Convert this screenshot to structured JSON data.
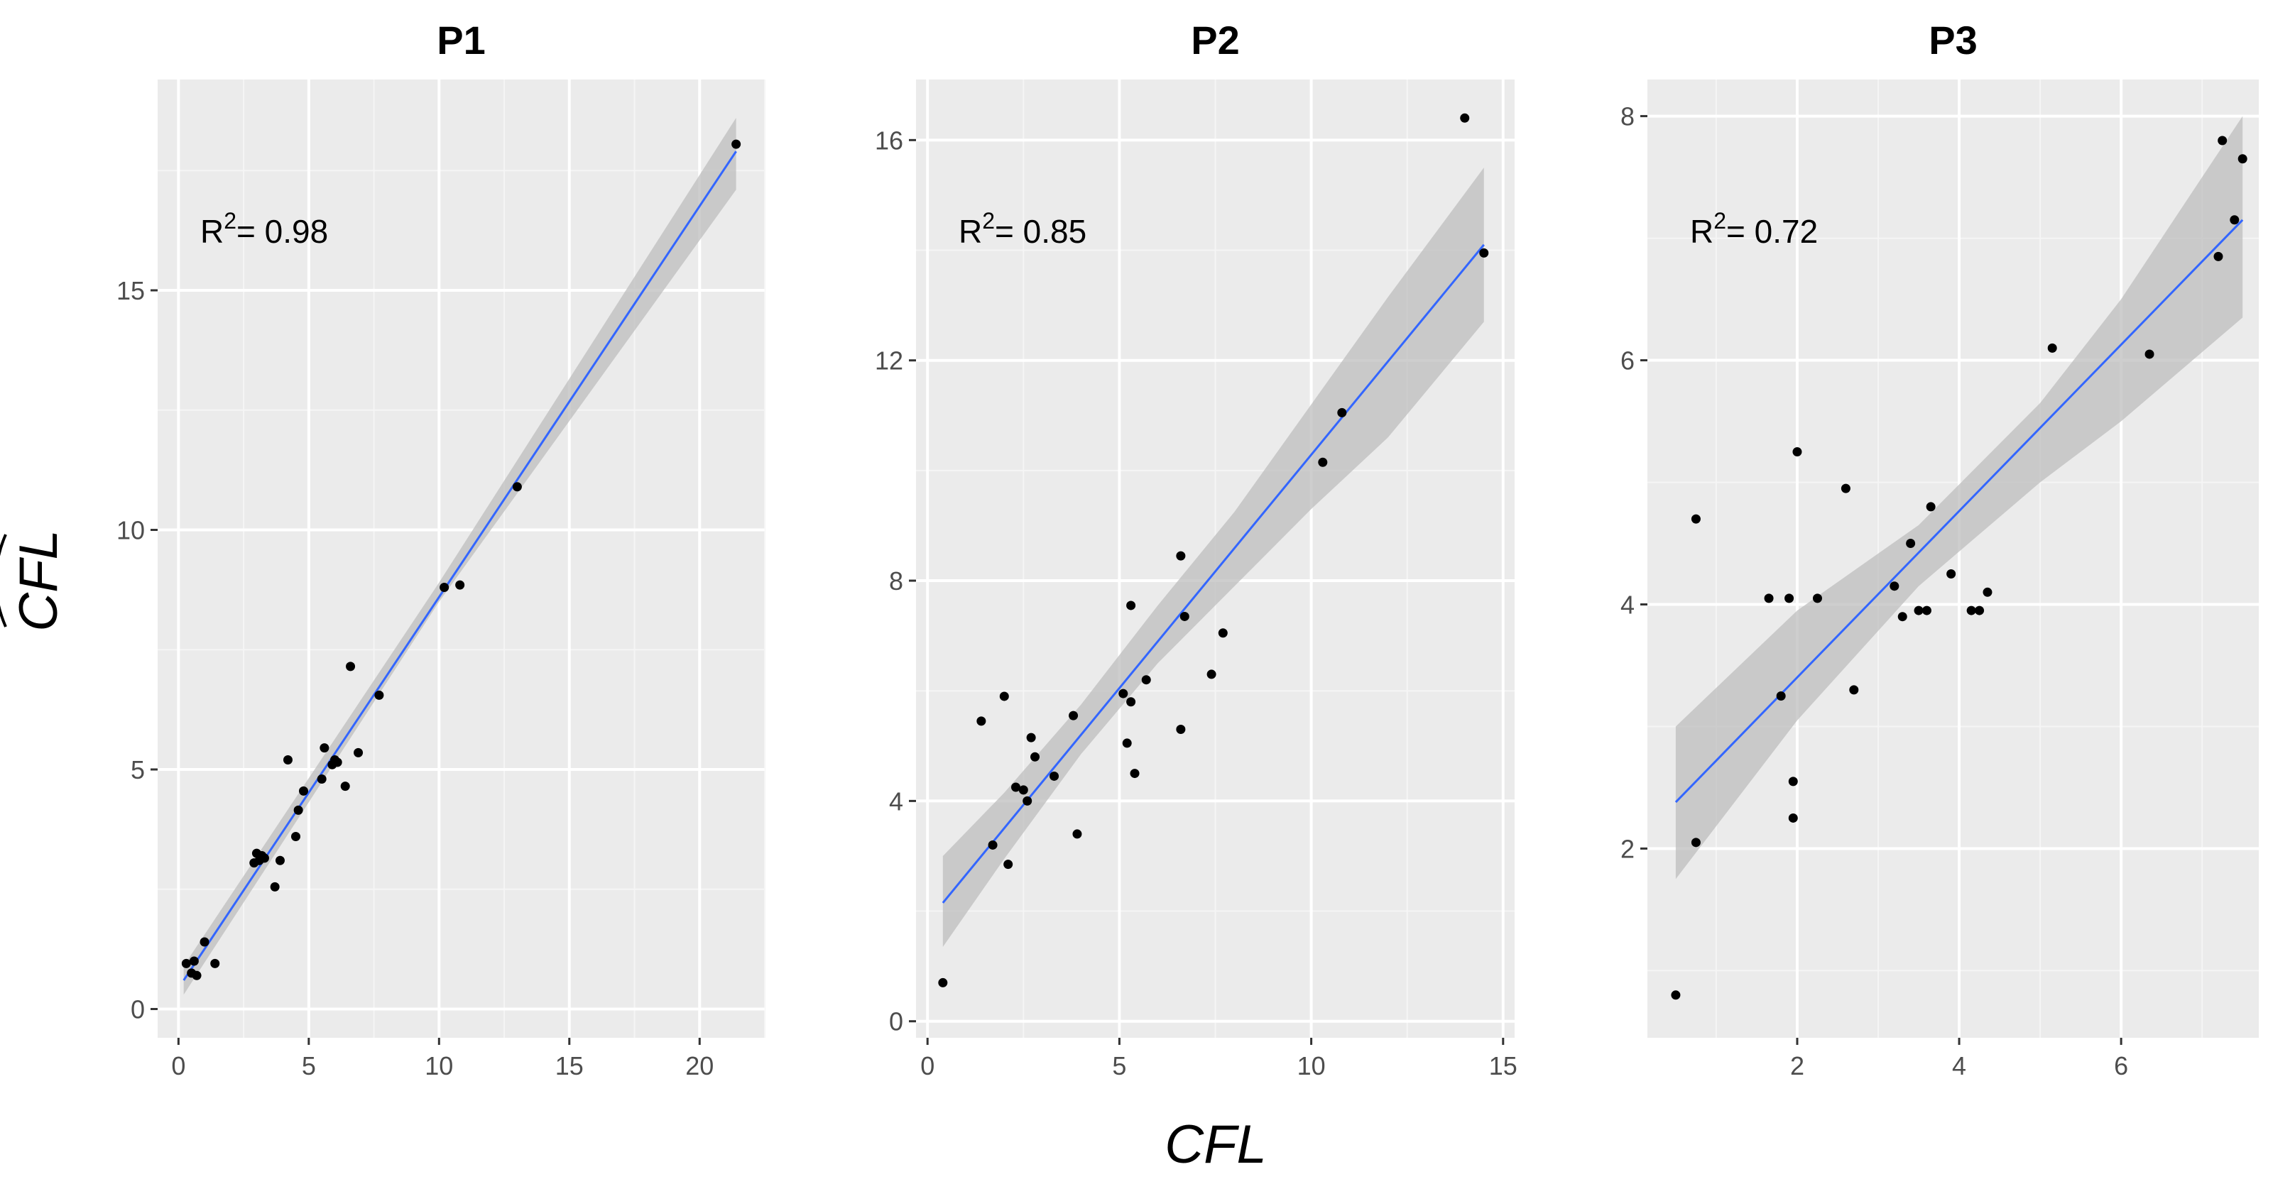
{
  "figure": {
    "xlabel": "CFL",
    "ylabel": "CFL",
    "ylabel_decoration": "wide-hat"
  },
  "colors": {
    "panel_background": "#ebebeb",
    "grid_major": "#ffffff",
    "grid_minor": "#f5f5f5",
    "fit_line": "#3366ff",
    "ribbon": "#bdbdbd",
    "points": "#000000"
  },
  "chart_data": [
    {
      "type": "scatter",
      "title": "P1",
      "annotation": {
        "prefix": "R",
        "superscript": "2",
        "text": "= 0.98",
        "r_squared": 0.98
      },
      "xlim": [
        -0.8,
        22.5
      ],
      "ylim": [
        -0.6,
        19.4
      ],
      "xticks": [
        0,
        5,
        10,
        15,
        20
      ],
      "yticks": [
        0,
        5,
        10,
        15
      ],
      "xtick_labels": [
        "0",
        "5",
        "10",
        "15",
        "20"
      ],
      "ytick_labels": [
        "0",
        "5",
        "10",
        "15"
      ],
      "fit": {
        "x": [
          0.2,
          21.4
        ],
        "y": [
          0.6,
          17.9
        ]
      },
      "ribbon": [
        [
          0.2,
          0.3,
          0.9
        ],
        [
          10.0,
          8.5,
          8.9
        ],
        [
          21.4,
          17.1,
          18.6
        ]
      ],
      "points": [
        [
          0.3,
          0.95
        ],
        [
          0.5,
          0.75
        ],
        [
          0.6,
          1.0
        ],
        [
          0.7,
          0.7
        ],
        [
          1.0,
          1.4
        ],
        [
          1.4,
          0.95
        ],
        [
          2.9,
          3.05
        ],
        [
          3.0,
          3.25
        ],
        [
          3.1,
          3.1
        ],
        [
          3.2,
          3.2
        ],
        [
          3.3,
          3.15
        ],
        [
          3.7,
          2.55
        ],
        [
          3.9,
          3.1
        ],
        [
          4.2,
          5.2
        ],
        [
          4.5,
          3.6
        ],
        [
          4.6,
          4.15
        ],
        [
          4.8,
          4.55
        ],
        [
          5.5,
          4.8
        ],
        [
          5.6,
          5.45
        ],
        [
          5.9,
          5.1
        ],
        [
          6.0,
          5.2
        ],
        [
          6.1,
          5.15
        ],
        [
          6.4,
          4.65
        ],
        [
          6.6,
          7.15
        ],
        [
          6.9,
          5.35
        ],
        [
          7.7,
          6.55
        ],
        [
          10.2,
          8.8
        ],
        [
          10.8,
          8.85
        ],
        [
          13.0,
          10.9
        ],
        [
          21.4,
          18.05
        ]
      ]
    },
    {
      "type": "scatter",
      "title": "P2",
      "annotation": {
        "prefix": "R",
        "superscript": "2",
        "text": "= 0.85",
        "r_squared": 0.85
      },
      "xlim": [
        -0.3,
        15.3
      ],
      "ylim": [
        -0.3,
        17.1
      ],
      "xticks": [
        0,
        5,
        10,
        15
      ],
      "yticks": [
        0,
        4,
        8,
        12,
        16
      ],
      "xtick_labels": [
        "0",
        "5",
        "10",
        "15"
      ],
      "ytick_labels": [
        "0",
        "4",
        "8",
        "12",
        "16"
      ],
      "fit": {
        "x": [
          0.4,
          14.5
        ],
        "y": [
          2.15,
          14.1
        ]
      },
      "ribbon": [
        [
          0.4,
          1.35,
          3.0
        ],
        [
          2.0,
          2.95,
          4.15
        ],
        [
          4.0,
          4.85,
          5.75
        ],
        [
          6.0,
          6.5,
          7.55
        ],
        [
          8.0,
          7.9,
          9.25
        ],
        [
          10.0,
          9.3,
          11.2
        ],
        [
          12.0,
          10.6,
          13.15
        ],
        [
          14.5,
          12.7,
          15.5
        ]
      ],
      "points": [
        [
          0.4,
          0.7
        ],
        [
          1.4,
          5.45
        ],
        [
          1.7,
          3.2
        ],
        [
          2.0,
          5.9
        ],
        [
          2.1,
          2.85
        ],
        [
          2.3,
          4.25
        ],
        [
          2.5,
          4.2
        ],
        [
          2.6,
          4.0
        ],
        [
          2.7,
          5.15
        ],
        [
          2.8,
          4.8
        ],
        [
          3.3,
          4.45
        ],
        [
          3.8,
          5.55
        ],
        [
          3.9,
          3.4
        ],
        [
          5.1,
          5.95
        ],
        [
          5.2,
          5.05
        ],
        [
          5.3,
          7.55
        ],
        [
          5.3,
          5.8
        ],
        [
          5.4,
          4.5
        ],
        [
          5.7,
          6.2
        ],
        [
          6.6,
          5.3
        ],
        [
          6.6,
          8.45
        ],
        [
          6.7,
          7.35
        ],
        [
          7.4,
          6.3
        ],
        [
          7.7,
          7.05
        ],
        [
          10.3,
          10.15
        ],
        [
          10.8,
          11.05
        ],
        [
          14.0,
          16.4
        ],
        [
          14.5,
          13.95
        ]
      ]
    },
    {
      "type": "scatter",
      "title": "P3",
      "annotation": {
        "prefix": "R",
        "superscript": "2",
        "text": "= 0.72",
        "r_squared": 0.72
      },
      "xlim": [
        0.15,
        7.7
      ],
      "ylim": [
        0.45,
        8.3
      ],
      "xticks": [
        2,
        4,
        6
      ],
      "yticks": [
        2,
        4,
        6,
        8
      ],
      "xtick_labels": [
        "2",
        "4",
        "6"
      ],
      "ytick_labels": [
        "2",
        "4",
        "6",
        "8"
      ],
      "fit": {
        "x": [
          0.5,
          7.5
        ],
        "y": [
          2.38,
          7.15
        ]
      },
      "ribbon": [
        [
          0.5,
          1.75,
          3.0
        ],
        [
          2.0,
          3.05,
          3.95
        ],
        [
          3.5,
          4.15,
          4.65
        ],
        [
          5.0,
          5.0,
          5.65
        ],
        [
          6.0,
          5.5,
          6.5
        ],
        [
          7.5,
          6.35,
          8.0
        ]
      ],
      "points": [
        [
          0.5,
          0.8
        ],
        [
          0.75,
          4.7
        ],
        [
          0.75,
          2.05
        ],
        [
          1.65,
          4.05
        ],
        [
          1.8,
          3.25
        ],
        [
          1.9,
          4.05
        ],
        [
          1.95,
          2.55
        ],
        [
          1.95,
          2.25
        ],
        [
          2.0,
          5.25
        ],
        [
          2.25,
          4.05
        ],
        [
          2.6,
          4.95
        ],
        [
          2.7,
          3.3
        ],
        [
          3.2,
          4.15
        ],
        [
          3.3,
          3.9
        ],
        [
          3.4,
          4.5
        ],
        [
          3.5,
          3.95
        ],
        [
          3.6,
          3.95
        ],
        [
          3.65,
          4.8
        ],
        [
          3.9,
          4.25
        ],
        [
          4.15,
          3.95
        ],
        [
          4.25,
          3.95
        ],
        [
          4.35,
          4.1
        ],
        [
          5.15,
          6.1
        ],
        [
          6.35,
          6.05
        ],
        [
          7.2,
          6.85
        ],
        [
          7.25,
          7.8
        ],
        [
          7.4,
          7.15
        ],
        [
          7.5,
          7.65
        ]
      ]
    }
  ]
}
